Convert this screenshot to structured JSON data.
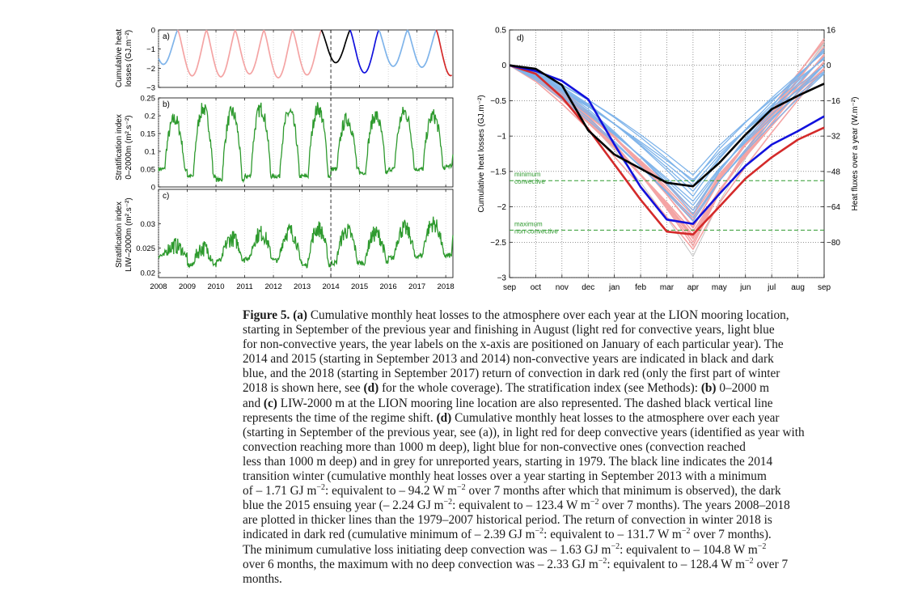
{
  "chart_data": [
    {
      "panel": "a)",
      "type": "line",
      "ylabel": "Cumulative heat losses (GJ.m⁻²)",
      "ylim": [
        -3,
        0
      ],
      "yticks": [
        0,
        -1,
        -2,
        -3
      ],
      "xticks": [
        "2008",
        "2009",
        "2010",
        "2011",
        "2012",
        "2013",
        "2014",
        "2015",
        "2016",
        "2017",
        "2018"
      ],
      "xlim": [
        2008.0,
        2018.25
      ],
      "regime_shift_x": 2014.0,
      "years": [
        {
          "start": 2007.67,
          "min": -1.8,
          "class": "non-convective"
        },
        {
          "start": 2008.67,
          "min": -2.4,
          "class": "convective"
        },
        {
          "start": 2009.67,
          "min": -2.45,
          "class": "convective"
        },
        {
          "start": 2010.67,
          "min": -2.3,
          "class": "convective"
        },
        {
          "start": 2011.67,
          "min": -2.5,
          "class": "convective"
        },
        {
          "start": 2012.67,
          "min": -2.35,
          "class": "convective"
        },
        {
          "start": 2013.67,
          "min": -1.71,
          "class": "2014"
        },
        {
          "start": 2014.67,
          "min": -2.24,
          "class": "2015"
        },
        {
          "start": 2015.67,
          "min": -1.9,
          "class": "non-convective"
        },
        {
          "start": 2016.67,
          "min": -1.95,
          "class": "non-convective"
        },
        {
          "start": 2017.67,
          "min": -2.39,
          "class": "2018"
        }
      ]
    },
    {
      "panel": "b)",
      "type": "line",
      "ylabel": "Stratification index 0–2000m (m².s⁻²)",
      "ylim": [
        0,
        0.25
      ],
      "yticks": [
        "0.25",
        "0.2",
        "0.15",
        "0.1",
        "0.05",
        "0"
      ],
      "xticks": [
        "2008",
        "2009",
        "2010",
        "2011",
        "2012",
        "2013",
        "2014",
        "2015",
        "2016",
        "2017",
        "2018"
      ],
      "seasonal_peaks": [
        0.19,
        0.22,
        0.21,
        0.22,
        0.21,
        0.22,
        0.19,
        0.2,
        0.21,
        0.2
      ],
      "seasonal_troughs": [
        0.05,
        0.03,
        0.02,
        0.03,
        0.03,
        0.03,
        0.05,
        0.04,
        0.05,
        0.05,
        0.06
      ]
    },
    {
      "panel": "c)",
      "type": "line",
      "ylabel": "Stratification index LIW–2000m (m².s⁻²)",
      "ylim": [
        0.019,
        0.037
      ],
      "yticks": [
        "0.03",
        "0.025",
        "0.02"
      ],
      "xticks": [
        "2008",
        "2009",
        "2010",
        "2011",
        "2012",
        "2013",
        "2014",
        "2015",
        "2016",
        "2017",
        "2018"
      ],
      "seasonal_peaks": [
        0.0255,
        0.025,
        0.027,
        0.028,
        0.0285,
        0.029,
        0.0285,
        0.028,
        0.029,
        0.03,
        0.033
      ],
      "seasonal_troughs": [
        0.0235,
        0.0215,
        0.0225,
        0.023,
        0.0225,
        0.0215,
        0.022,
        0.022,
        0.023,
        0.0235
      ]
    },
    {
      "panel": "d)",
      "type": "line",
      "ylabel": "Cumulative heat losses (GJ.m⁻²)",
      "ylabel_right": "Heat fluxes over a year (W.m⁻²)",
      "categories": [
        "sep",
        "oct",
        "nov",
        "dec",
        "jan",
        "feb",
        "mar",
        "apr",
        "may",
        "jun",
        "jul",
        "aug",
        "sep"
      ],
      "ylim": [
        -3,
        0.5
      ],
      "yticks": [
        "0.5",
        "0",
        "−0.5",
        "−1",
        "−1.5",
        "−2",
        "−2.5",
        "−3"
      ],
      "yticks_right": [
        "16",
        "0",
        "−16",
        "−32",
        "−48",
        "−64",
        "−80"
      ],
      "thresholds": [
        {
          "value": -1.63,
          "label_top": "minimum",
          "label_bottom": "convective"
        },
        {
          "value": -2.33,
          "label_top": "maximum",
          "label_bottom": "non-convective"
        }
      ],
      "highlight_series": [
        {
          "year": "2014",
          "values": [
            0,
            -0.05,
            -0.28,
            -0.92,
            -1.26,
            -1.46,
            -1.66,
            -1.71,
            -1.38,
            -0.98,
            -0.62,
            -0.43,
            -0.26
          ],
          "color": "#000000"
        },
        {
          "year": "2015",
          "values": [
            0,
            -0.08,
            -0.22,
            -0.48,
            -1.12,
            -1.72,
            -2.18,
            -2.24,
            -1.82,
            -1.42,
            -1.12,
            -0.93,
            -0.72
          ],
          "color": "#1111dd"
        },
        {
          "year": "2018",
          "values": [
            0,
            -0.12,
            -0.45,
            -0.9,
            -1.4,
            -1.9,
            -2.35,
            -2.39,
            -2.0,
            -1.6,
            -1.3,
            -1.05,
            -0.88
          ],
          "color": "#d42a2a"
        }
      ],
      "convective_minima": [
        -2.05,
        -2.12,
        -2.2,
        -2.28,
        -2.3,
        -2.35,
        -2.4,
        -2.45,
        -2.5,
        -2.55,
        -2.6,
        -2.42,
        -2.18
      ],
      "non_convective_minima": [
        -1.62,
        -1.7,
        -1.78,
        -1.85,
        -1.92,
        -1.98,
        -2.05,
        -2.1,
        -2.15,
        -2.2,
        -1.55,
        -1.65
      ],
      "unreported_minima": [
        -2.5,
        -2.7
      ]
    }
  ],
  "caption": {
    "label": "Figure 5.",
    "lines": [
      {
        "parts": [
          {
            "b": "Figure 5."
          },
          {
            "t": "  "
          },
          {
            "b": "(a)"
          },
          {
            "t": " Cumulative monthly heat losses to the atmosphere over each year at the LION mooring location,"
          }
        ]
      },
      {
        "parts": [
          {
            "t": "starting in September of the previous year and finishing in August (light red for convective years, light blue"
          }
        ]
      },
      {
        "parts": [
          {
            "t": "for non-convective years, the year labels on the x-axis are positioned on January of each particular year). The"
          }
        ]
      },
      {
        "parts": [
          {
            "t": "2014 and 2015 (starting in September 2013 and 2014) non-convective years are indicated in black and dark"
          }
        ]
      },
      {
        "parts": [
          {
            "t": "blue, and the 2018 (starting in September 2017) return of convection in dark red (only the first part of winter"
          }
        ]
      },
      {
        "parts": [
          {
            "t": "2018 is shown here, see "
          },
          {
            "b": "(d)"
          },
          {
            "t": " for the whole coverage). The stratification index (see Methods): "
          },
          {
            "b": "(b)"
          },
          {
            "t": " 0–2000 m"
          }
        ]
      },
      {
        "parts": [
          {
            "t": "and "
          },
          {
            "b": "(c)"
          },
          {
            "t": " LIW-2000 m at the LION mooring line location are also represented. The dashed black vertical line"
          }
        ]
      },
      {
        "parts": [
          {
            "t": "represents the time of the regime shift. "
          },
          {
            "b": "(d)"
          },
          {
            "t": " Cumulative monthly heat losses to the atmosphere over each year"
          }
        ]
      },
      {
        "parts": [
          {
            "t": "(starting in September of the previous year, see (a)), in light red for deep convective years (identified as year with"
          }
        ]
      },
      {
        "parts": [
          {
            "t": "convection reaching more than 1000 m deep), light blue for non-convective ones (convection reached"
          }
        ]
      },
      {
        "parts": [
          {
            "t": "less than 1000 m deep) and in grey for unreported years, starting in 1979. The black line indicates the 2014"
          }
        ]
      },
      {
        "parts": [
          {
            "t": "transition winter (cumulative monthly heat losses over a year starting in September 2013 with a minimum"
          }
        ]
      },
      {
        "parts": [
          {
            "t": "of – 1.71 GJ m"
          },
          {
            "sup": "−2"
          },
          {
            "t": ": equivalent to – 94.2 W m"
          },
          {
            "sup": "−2"
          },
          {
            "t": " over 7 months after which that minimum is observed), the dark"
          }
        ]
      },
      {
        "parts": [
          {
            "t": "blue the 2015 ensuing year (– 2.24 GJ m"
          },
          {
            "sup": "−2"
          },
          {
            "t": ": equivalent to – 123.4 W m"
          },
          {
            "sup": "−2"
          },
          {
            "t": " over 7 months). The years 2008–2018"
          }
        ]
      },
      {
        "parts": [
          {
            "t": "are plotted in thicker lines than the 1979–2007 historical period. The return of convection in winter 2018 is"
          }
        ]
      },
      {
        "parts": [
          {
            "t": "indicated in dark red (cumulative minimum of – 2.39 GJ m"
          },
          {
            "sup": "−2"
          },
          {
            "t": ": equivalent to – 131.7 W m"
          },
          {
            "sup": "−2"
          },
          {
            "t": " over 7 months)."
          }
        ]
      },
      {
        "parts": [
          {
            "t": "The minimum cumulative loss initiating deep convection was – 1.63 GJ m"
          },
          {
            "sup": "−2"
          },
          {
            "t": ": equivalent to – 104.8 W m"
          },
          {
            "sup": "−2"
          }
        ]
      },
      {
        "parts": [
          {
            "t": "over 6 months, the maximum with no deep convection was – 2.33 GJ m"
          },
          {
            "sup": "−2"
          },
          {
            "t": ": equivalent to – 128.4 W m"
          },
          {
            "sup": "−2"
          },
          {
            "t": " over 7"
          }
        ]
      },
      {
        "parts": [
          {
            "t": "months."
          }
        ]
      }
    ]
  },
  "colors": {
    "convective": "#f4a4a4",
    "non_convective": "#7fb4ea",
    "unreported": "#c8c8c8",
    "y2014": "#000000",
    "y2015": "#1111dd",
    "y2018": "#d42a2a",
    "stratification": "#2e9a2e",
    "threshold": "#2e9a2e"
  }
}
